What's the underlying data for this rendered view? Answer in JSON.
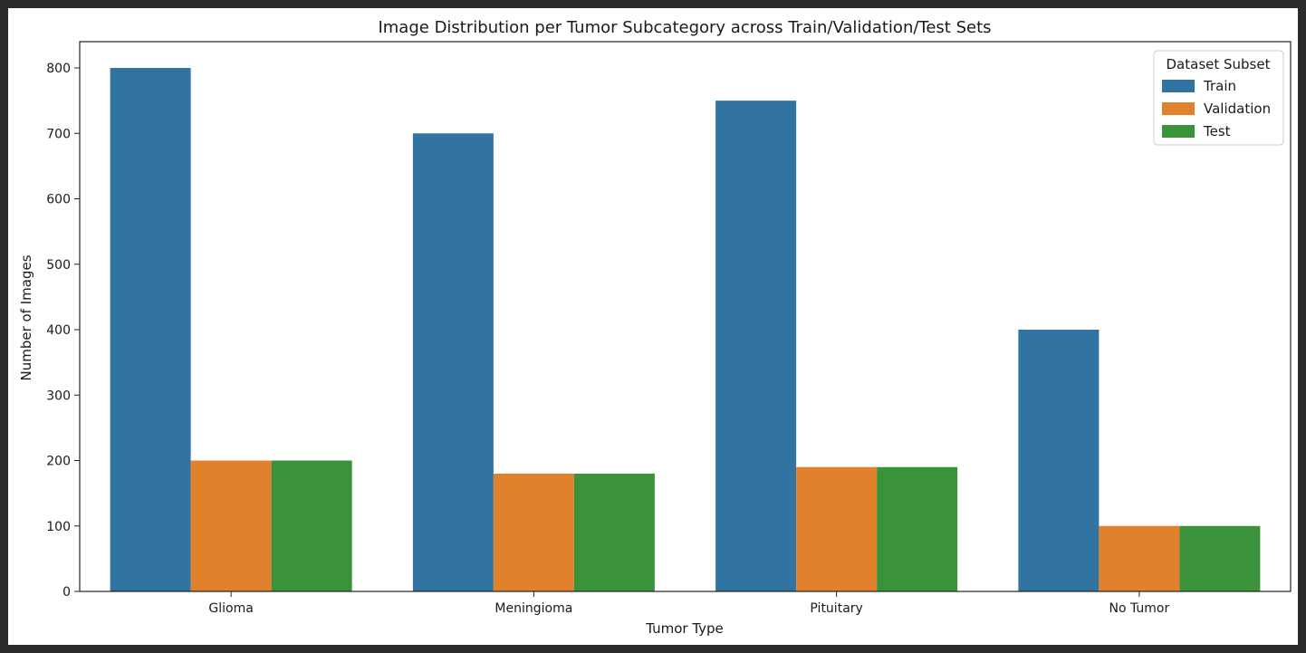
{
  "chart_data": {
    "type": "bar",
    "title": "Image Distribution per Tumor Subcategory across Train/Validation/Test Sets",
    "xlabel": "Tumor Type",
    "ylabel": "Number of Images",
    "categories": [
      "Glioma",
      "Meningioma",
      "Pituitary",
      "No Tumor"
    ],
    "series": [
      {
        "name": "Train",
        "values": [
          800,
          700,
          750,
          400
        ],
        "color": "#3274a1"
      },
      {
        "name": "Validation",
        "values": [
          200,
          180,
          190,
          100
        ],
        "color": "#e1812c"
      },
      {
        "name": "Test",
        "values": [
          200,
          180,
          190,
          100
        ],
        "color": "#3a923a"
      }
    ],
    "ylim": [
      0,
      800
    ],
    "yticks": [
      0,
      100,
      200,
      300,
      400,
      500,
      600,
      700,
      800
    ],
    "legend": {
      "title": "Dataset Subset",
      "position": "top-right"
    },
    "grid": false
  }
}
